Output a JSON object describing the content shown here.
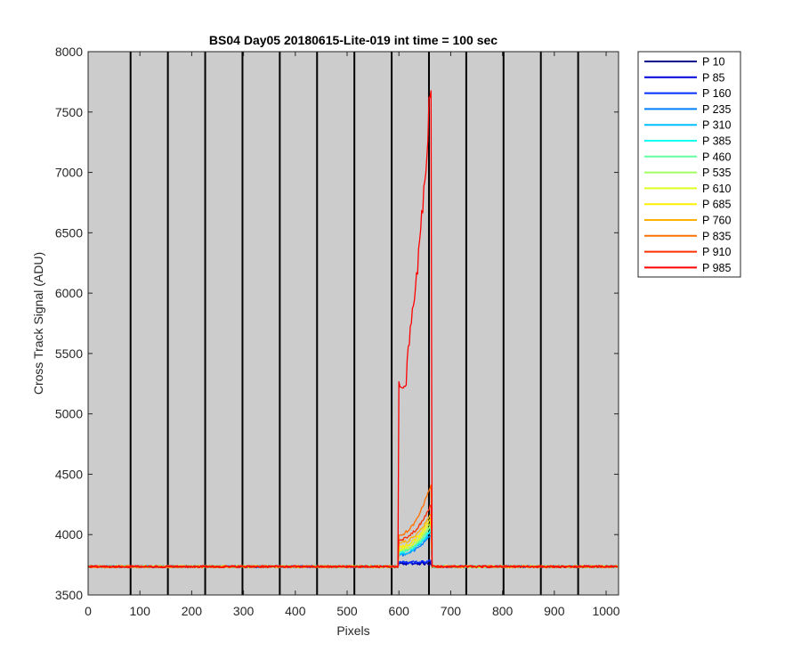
{
  "chart_data": {
    "type": "line",
    "title": "BS04 Day05 20180615-Lite-019 int time = 100 sec",
    "xlabel": "Pixels",
    "ylabel": "Cross Track Signal (ADU)",
    "xlim": [
      0,
      1024
    ],
    "ylim": [
      3500,
      8000
    ],
    "xticks": [
      0,
      100,
      200,
      300,
      400,
      500,
      600,
      700,
      800,
      900,
      1000
    ],
    "yticks": [
      3500,
      4000,
      4500,
      5000,
      5500,
      6000,
      6500,
      7000,
      7500,
      8000
    ],
    "background": "#cccccc",
    "vertical_lines": [
      82,
      154,
      226,
      298,
      370,
      442,
      514,
      586,
      658,
      730,
      802,
      874,
      946
    ],
    "legend_position": "outside-right",
    "baseline": 3735,
    "spike_region": [
      600,
      662
    ],
    "series": [
      {
        "name": "P 10",
        "color": "#00008f",
        "spike_start": 3760,
        "spike_end": 3760
      },
      {
        "name": "P 85",
        "color": "#0000d9",
        "spike_start": 3765,
        "spike_end": 3770
      },
      {
        "name": "P 160",
        "color": "#0030ff",
        "spike_start": 3770,
        "spike_end": 3780
      },
      {
        "name": "P 235",
        "color": "#0080ff",
        "spike_start": 3830,
        "spike_end": 4000
      },
      {
        "name": "P 310",
        "color": "#00c0ff",
        "spike_start": 3840,
        "spike_end": 4030
      },
      {
        "name": "P 385",
        "color": "#10ffef",
        "spike_start": 3850,
        "spike_end": 4050
      },
      {
        "name": "P 460",
        "color": "#60ffa0",
        "spike_start": 3860,
        "spike_end": 4070
      },
      {
        "name": "P 535",
        "color": "#a0ff60",
        "spike_start": 3870,
        "spike_end": 4090
      },
      {
        "name": "P 610",
        "color": "#dfff20",
        "spike_start": 3880,
        "spike_end": 4110
      },
      {
        "name": "P 685",
        "color": "#ffef00",
        "spike_start": 3900,
        "spike_end": 4140
      },
      {
        "name": "P 760",
        "color": "#ffb000",
        "spike_start": 3930,
        "spike_end": 4170
      },
      {
        "name": "P 835",
        "color": "#ff7000",
        "spike_start": 4000,
        "spike_end": 4420
      },
      {
        "name": "P 910",
        "color": "#ff3000",
        "spike_start": 3960,
        "spike_end": 4250
      },
      {
        "name": "P 985",
        "color": "#ff0000",
        "spike_start": 5230,
        "spike_end": 7620
      }
    ]
  }
}
